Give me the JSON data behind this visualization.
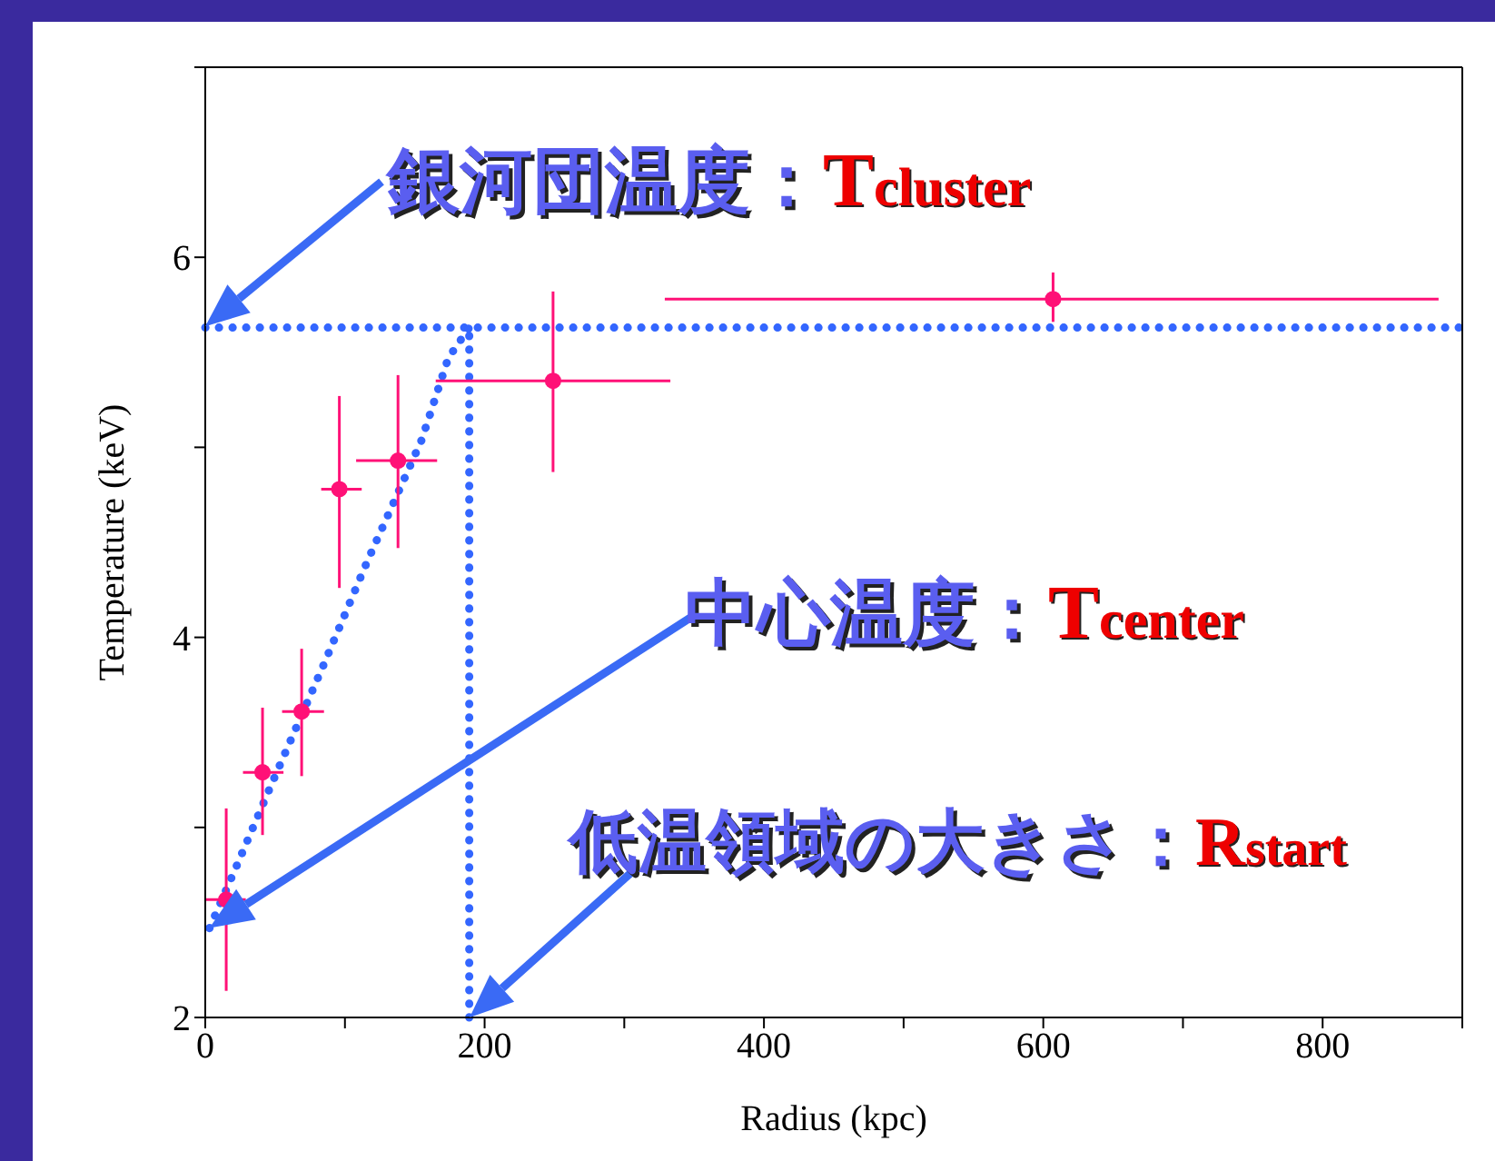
{
  "chart_data": {
    "type": "scatter",
    "xlabel": "Radius (kpc)",
    "ylabel": "Temperature (keV)",
    "xlim": [
      0,
      900
    ],
    "ylim": [
      2,
      7
    ],
    "xticks": [
      0,
      {
        "value": 100,
        "label": null
      },
      200,
      {
        "value": 300,
        "label": null
      },
      400,
      {
        "value": 500,
        "label": null
      },
      600,
      {
        "value": 700,
        "label": null
      },
      800,
      {
        "value": 900,
        "label": null
      }
    ],
    "yticks": [
      2,
      {
        "value": 3,
        "label": null
      },
      4,
      {
        "value": 5,
        "label": null
      },
      6,
      {
        "value": 7,
        "label": null
      }
    ],
    "grid": false,
    "legend": false,
    "series": [
      {
        "type": "line",
        "color": "#3366ff",
        "line_style": "dotted",
        "marker": "none",
        "x": [
          3,
          22,
          47,
          85,
          116,
          155,
          174,
          189
        ],
        "values": [
          2.47,
          2.79,
          3.22,
          3.86,
          4.4,
          5.04,
          5.47,
          5.63
        ]
      },
      {
        "color": "#ff1177",
        "marker": "circle",
        "x": [
          15,
          41,
          69,
          96,
          138,
          249,
          607
        ],
        "values": [
          2.62,
          3.29,
          3.61,
          4.78,
          4.93,
          5.35,
          5.78
        ],
        "errors": [
          [
            2.14,
            3.1
          ],
          [
            2.96,
            3.63
          ],
          [
            3.27,
            3.94
          ],
          [
            4.26,
            5.27
          ],
          [
            4.47,
            5.38
          ],
          [
            4.87,
            5.82
          ],
          [
            5.66,
            5.92
          ]
        ],
        "xerrors": [
          [
            0,
            29
          ],
          [
            27,
            56
          ],
          [
            55,
            85
          ],
          [
            83,
            112
          ],
          [
            108,
            166
          ],
          [
            165,
            333
          ],
          [
            329,
            883
          ]
        ]
      }
    ],
    "ref_lines": [
      {
        "axis": "y",
        "value": 5.63,
        "color": "#3366ff",
        "line_style": "dotted"
      },
      {
        "axis": "x",
        "value": 189,
        "color": "#3366ff",
        "line_style": "dotted"
      }
    ],
    "annotations": [
      {
        "text": "銀河団温度：Tcluster",
        "x": 0,
        "y": 5.63
      },
      "中心温度：Tcenter",
      {
        "text": "低温領域の大きさ：Rstart",
        "x": 189,
        "y": 2
      }
    ]
  }
}
